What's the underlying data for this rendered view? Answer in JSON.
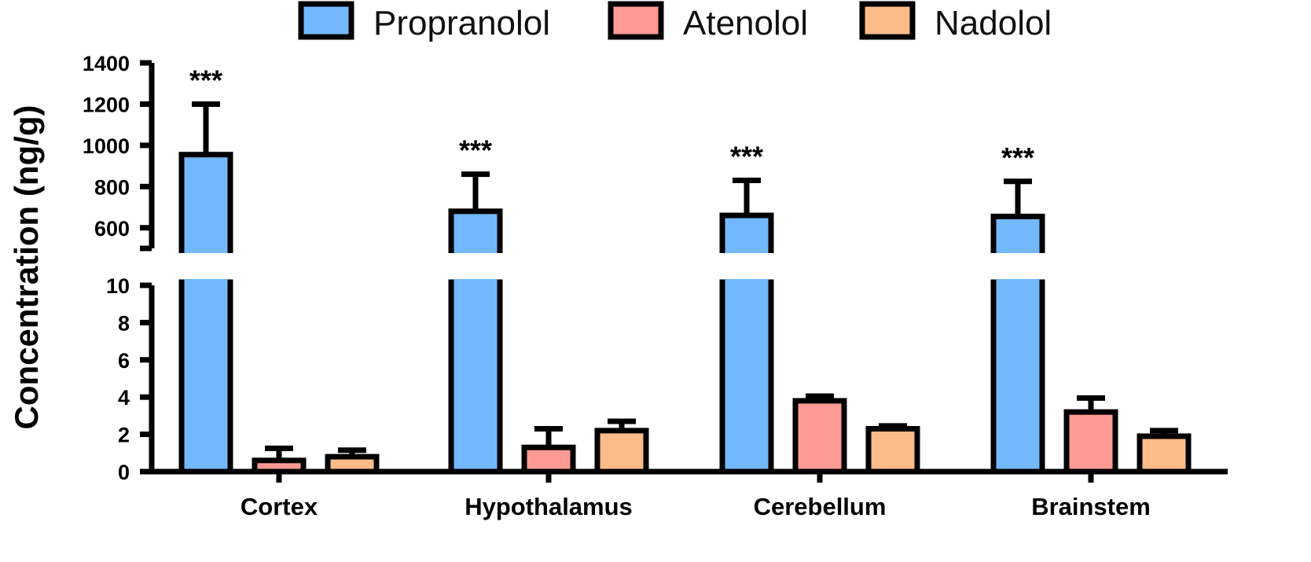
{
  "chart_data": {
    "type": "bar",
    "ylabel": "Concentration (ng/g)",
    "categories": [
      "Cortex",
      "Hypothalamus",
      "Cerebellum",
      "Brainstem"
    ],
    "y_axis_segments": {
      "lower": {
        "ylim": [
          0,
          10
        ],
        "ticks": [
          "0",
          "2",
          "4",
          "6",
          "8",
          "10"
        ]
      },
      "upper": {
        "ylim": [
          500,
          1400
        ],
        "ticks": [
          "600",
          "800",
          "1000",
          "1200",
          "1400"
        ]
      }
    },
    "series": [
      {
        "name": "Propranolol",
        "color": "#74b8fc",
        "values": [
          955,
          680,
          660,
          655
        ],
        "errors": [
          245,
          180,
          170,
          170
        ]
      },
      {
        "name": "Atenolol",
        "color": "#fd9a94",
        "values": [
          0.6,
          1.3,
          3.8,
          3.2
        ],
        "errors": [
          0.65,
          1.0,
          0.25,
          0.75
        ]
      },
      {
        "name": "Nadolol",
        "color": "#fdbb89",
        "values": [
          0.8,
          2.2,
          2.3,
          1.9
        ],
        "errors": [
          0.35,
          0.5,
          0.15,
          0.3
        ]
      }
    ],
    "annotations": [
      "***",
      "***",
      "***",
      "***"
    ],
    "legend_position": "top",
    "grid": false
  }
}
